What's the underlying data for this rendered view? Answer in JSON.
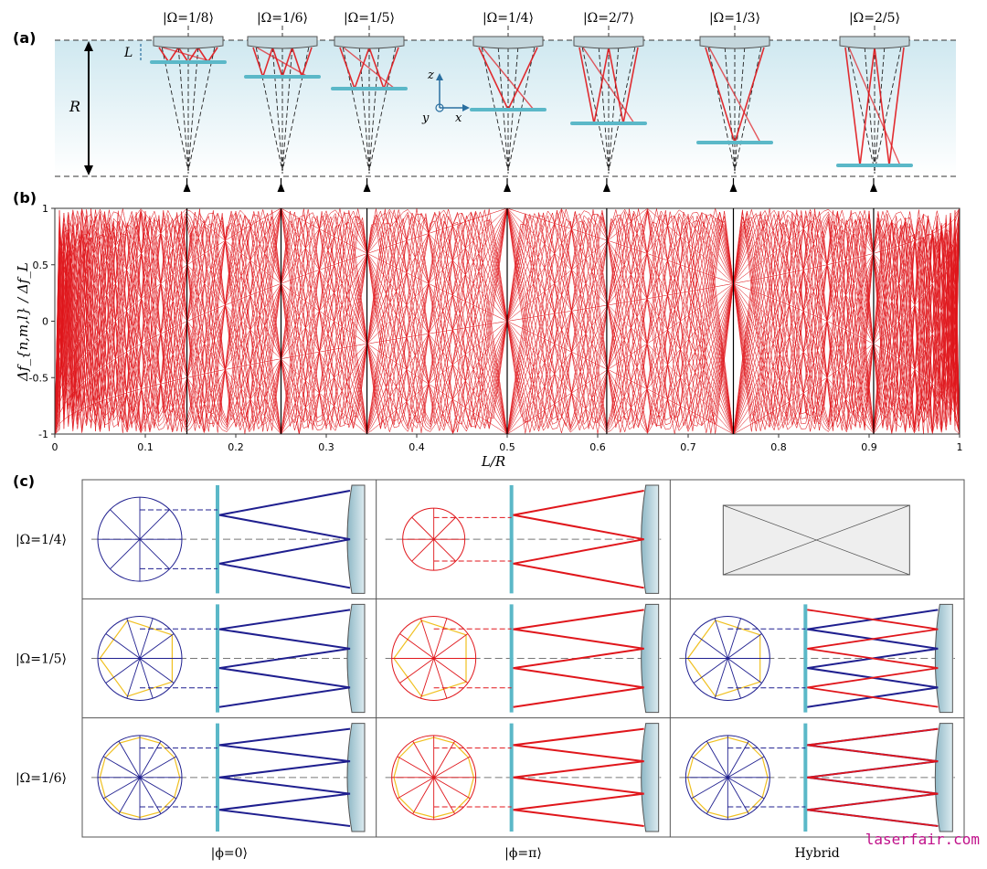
{
  "panel_labels": {
    "a": "(a)",
    "b": "(b)",
    "c": "(c)"
  },
  "panel_a": {
    "states": [
      "|Ω=1/8⟩",
      "|Ω=1/6⟩",
      "|Ω=1/5⟩",
      "|Ω=1/4⟩",
      "|Ω=2/7⟩",
      "|Ω=1/3⟩",
      "|Ω=2/5⟩"
    ],
    "L_label": "L",
    "R_label": "R",
    "axes": {
      "z": "z",
      "y": "y",
      "x": "x"
    }
  },
  "panel_b": {
    "ylabel": "Δf_{n,m,l} / Δf_L",
    "xlabel": "L/R",
    "xticks": [
      "0",
      "0.1",
      "0.2",
      "0.3",
      "0.4",
      "0.5",
      "0.6",
      "0.7",
      "0.8",
      "0.9",
      "1"
    ],
    "yticks": [
      "1",
      "0.5",
      "0",
      "-0.5",
      "-1"
    ]
  },
  "panel_c": {
    "rows": [
      "|Ω=1/4⟩",
      "|Ω=1/5⟩",
      "|Ω=1/6⟩"
    ],
    "cols": [
      "|ϕ=0⟩",
      "|ϕ=π⟩",
      "Hybrid"
    ]
  },
  "chart_data": {
    "type": "line",
    "title": "",
    "xlabel": "L/R",
    "ylabel": "Δf_{n,m,l}/Δf_L",
    "xlim": [
      0,
      1
    ],
    "ylim": [
      -1,
      1
    ],
    "degenerate_points_x": [
      0.146,
      0.25,
      0.345,
      0.5,
      0.61,
      0.75,
      0.905
    ],
    "grid": false,
    "legend": "none"
  },
  "watermark": "laserfair.com",
  "colors": {
    "red": "#e0161b",
    "blue": "#1f1f8f",
    "yellow": "#f0c020",
    "teal": "#5bb8c8",
    "mirror": "#a9cbd6",
    "watermark": "#c0108a"
  }
}
